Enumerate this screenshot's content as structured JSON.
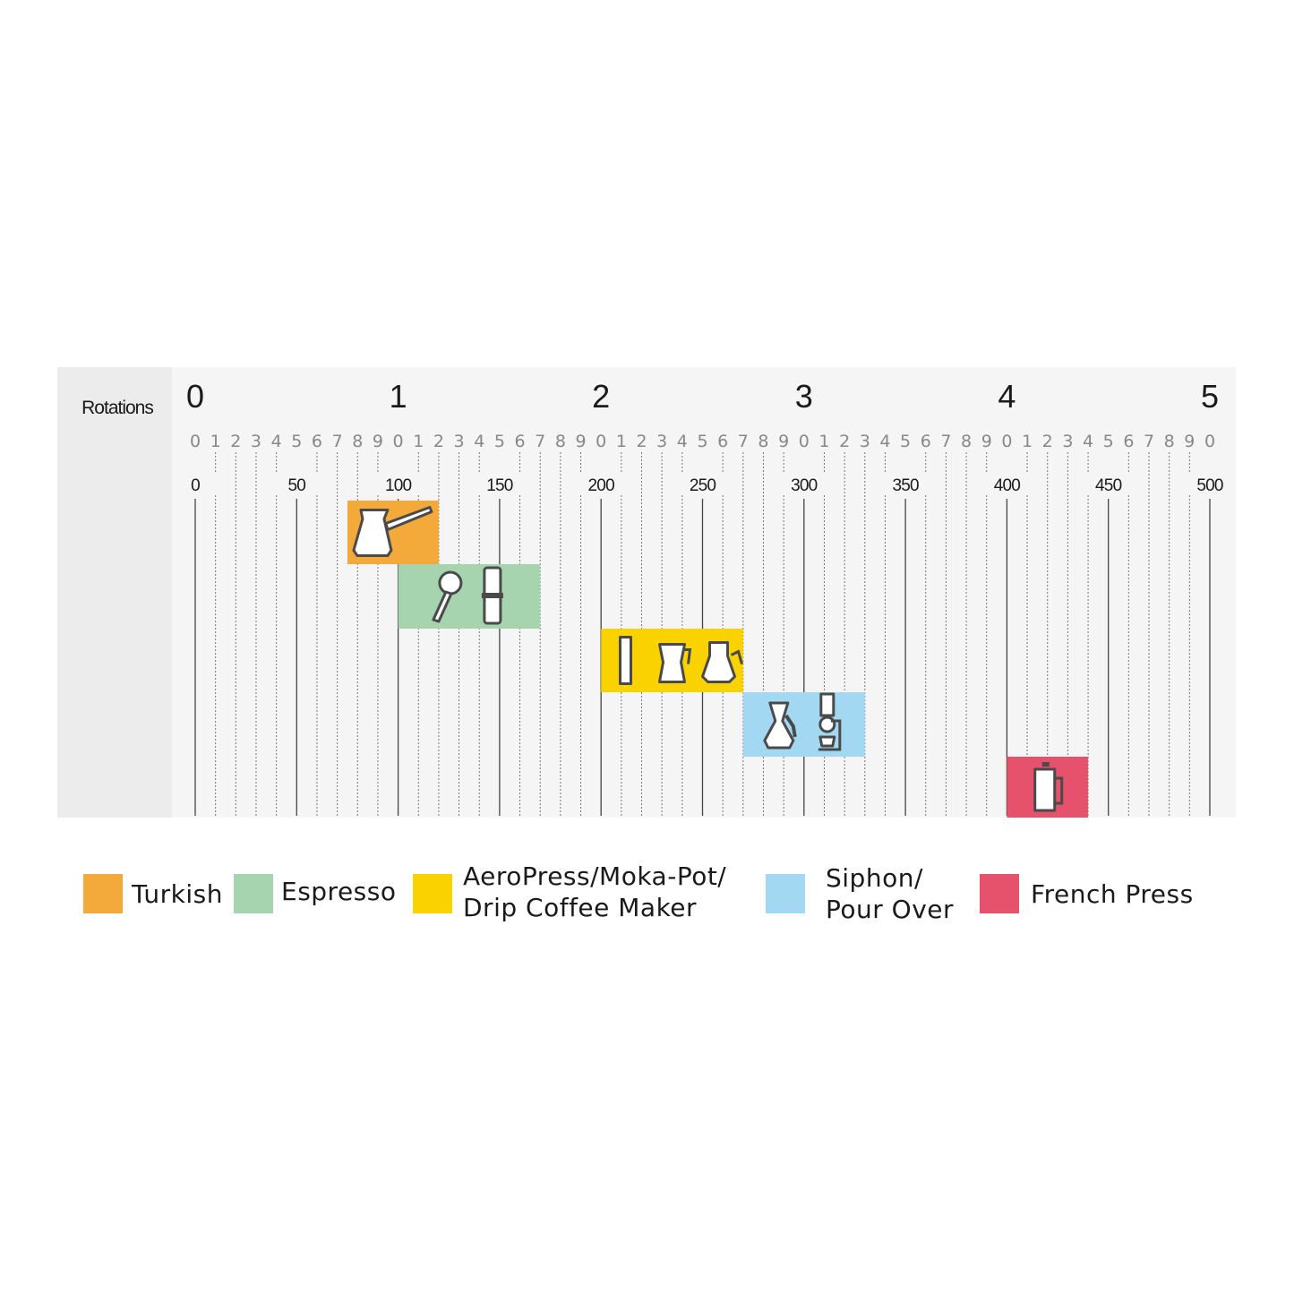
{
  "chart_data": {
    "type": "bar",
    "orientation": "horizontal-range",
    "row_label": "Rotations",
    "rotation_ticks": [
      "0",
      "1",
      "2",
      "3",
      "4",
      "5"
    ],
    "sub_ticks": [
      "0",
      "1",
      "2",
      "3",
      "4",
      "5",
      "6",
      "7",
      "8",
      "9"
    ],
    "xlim": [
      0,
      500
    ],
    "major_ticks": [
      0,
      50,
      100,
      150,
      200,
      250,
      300,
      350,
      400,
      450,
      500
    ],
    "grid": true,
    "legend_position": "bottom",
    "series": [
      {
        "name": "Turkish",
        "start": 75,
        "end": 120,
        "color": "#f4aa3a",
        "icons": [
          "turkish-cezve-icon"
        ]
      },
      {
        "name": "Espresso",
        "start": 100,
        "end": 170,
        "color": "#a6d4ae",
        "icons": [
          "portafilter-icon",
          "hand-grinder-icon"
        ]
      },
      {
        "name": "AeroPress/Moka-Pot/\nDrip Coffee Maker",
        "start": 200,
        "end": 270,
        "color": "#fad200",
        "icons": [
          "aeropress-icon",
          "moka-pot-icon",
          "drip-carafe-icon"
        ]
      },
      {
        "name": "Siphon/\nPour Over",
        "start": 270,
        "end": 330,
        "color": "#a3d8f3",
        "icons": [
          "chemex-icon",
          "siphon-icon"
        ]
      },
      {
        "name": "French Press",
        "start": 400,
        "end": 440,
        "color": "#e6526b",
        "icons": [
          "french-press-icon"
        ]
      }
    ]
  }
}
